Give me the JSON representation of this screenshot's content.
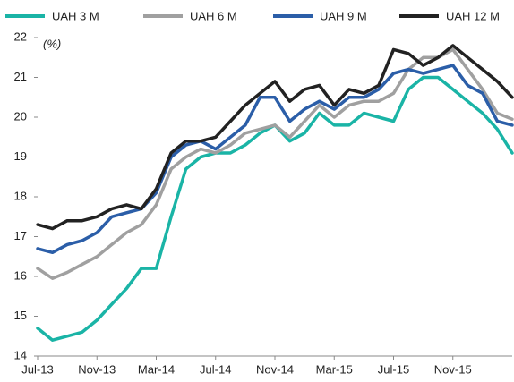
{
  "chart_data": {
    "type": "line",
    "y_label": "(%)",
    "categories": [
      "Jul-13",
      null,
      null,
      null,
      "Nov-13",
      null,
      null,
      null,
      "Mar-14",
      null,
      null,
      null,
      "Jul-14",
      null,
      null,
      null,
      "Nov-14",
      null,
      null,
      null,
      "Mar-15",
      null,
      null,
      null,
      "Jul-15",
      null,
      null,
      null,
      "Nov-15",
      null,
      null,
      null,
      null
    ],
    "series": [
      {
        "name": "UAH 3 M",
        "color": "#1ab4a6",
        "values": [
          14.7,
          14.4,
          14.5,
          14.6,
          14.9,
          15.3,
          15.7,
          16.2,
          16.2,
          17.5,
          18.7,
          19.0,
          19.1,
          19.1,
          19.3,
          19.6,
          19.8,
          19.4,
          19.6,
          20.1,
          19.8,
          19.8,
          20.1,
          20.0,
          19.9,
          20.7,
          21.0,
          21.0,
          20.7,
          20.4,
          20.1,
          19.7,
          19.1
        ]
      },
      {
        "name": "UAH 6 M",
        "color": "#a0a0a0",
        "values": [
          16.2,
          15.95,
          16.1,
          16.3,
          16.5,
          16.8,
          17.1,
          17.3,
          17.8,
          18.7,
          19.0,
          19.2,
          19.1,
          19.3,
          19.6,
          19.7,
          19.8,
          19.5,
          19.9,
          20.3,
          20.0,
          20.3,
          20.4,
          20.4,
          20.6,
          21.2,
          21.5,
          21.5,
          21.7,
          21.2,
          20.7,
          20.1,
          19.95
        ]
      },
      {
        "name": "UAH 9 M",
        "color": "#2b5ea8",
        "values": [
          16.7,
          16.6,
          16.8,
          16.9,
          17.1,
          17.5,
          17.6,
          17.7,
          18.1,
          19.0,
          19.3,
          19.4,
          19.2,
          19.5,
          19.8,
          20.5,
          20.5,
          19.9,
          20.2,
          20.4,
          20.2,
          20.5,
          20.5,
          20.7,
          21.1,
          21.2,
          21.1,
          21.2,
          21.3,
          20.8,
          20.6,
          19.9,
          19.8
        ]
      },
      {
        "name": "UAH 12 M",
        "color": "#222222",
        "values": [
          17.3,
          17.2,
          17.4,
          17.4,
          17.5,
          17.7,
          17.8,
          17.7,
          18.2,
          19.1,
          19.4,
          19.4,
          19.5,
          19.9,
          20.3,
          20.6,
          20.9,
          20.4,
          20.7,
          20.8,
          20.3,
          20.7,
          20.6,
          20.8,
          21.7,
          21.6,
          21.3,
          21.5,
          21.8,
          21.5,
          21.2,
          20.9,
          20.5
        ]
      }
    ],
    "ylim": [
      14,
      22
    ],
    "yticks": [
      14,
      15,
      16,
      17,
      18,
      19,
      20,
      21,
      22
    ],
    "legend": "top"
  }
}
